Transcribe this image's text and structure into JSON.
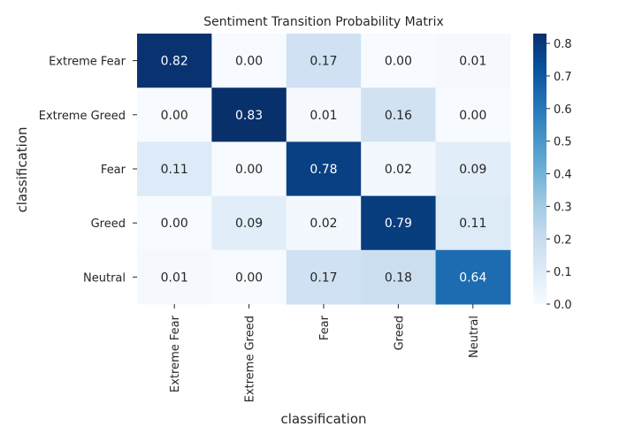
{
  "chart_data": {
    "type": "heatmap",
    "title": "Sentiment Transition Probability Matrix",
    "xlabel": "classification",
    "ylabel": "classification",
    "x_categories": [
      "Extreme Fear",
      "Extreme Greed",
      "Fear",
      "Greed",
      "Neutral"
    ],
    "y_categories": [
      "Extreme Fear",
      "Extreme Greed",
      "Fear",
      "Greed",
      "Neutral"
    ],
    "values": [
      [
        0.82,
        0.0,
        0.17,
        0.0,
        0.01
      ],
      [
        0.0,
        0.83,
        0.01,
        0.16,
        0.0
      ],
      [
        0.11,
        0.0,
        0.78,
        0.02,
        0.09
      ],
      [
        0.0,
        0.09,
        0.02,
        0.79,
        0.11
      ],
      [
        0.01,
        0.0,
        0.17,
        0.18,
        0.64
      ]
    ],
    "colorbar": {
      "colormap": "Blues",
      "range": [
        0,
        0.83
      ],
      "ticks": [
        "0.0",
        "0.1",
        "0.2",
        "0.3",
        "0.4",
        "0.5",
        "0.6",
        "0.7",
        "0.8"
      ]
    }
  }
}
